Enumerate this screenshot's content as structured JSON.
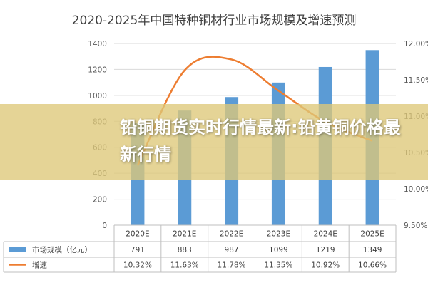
{
  "chart_data": {
    "type": "bar",
    "title": "2020-2025年中国特种铜材行业市场规模及增速预测",
    "categories": [
      "2020E",
      "2021E",
      "2022E",
      "2023E",
      "2024E",
      "2025E"
    ],
    "series": [
      {
        "name": "市场规模（亿元）",
        "type": "bar",
        "axis": "left",
        "values": [
          791,
          883,
          987,
          1099,
          1219,
          1349
        ],
        "labels": [
          "791",
          "883",
          "987",
          "1099",
          "1219",
          "1349"
        ],
        "color": "#5b9bd5"
      },
      {
        "name": "增速",
        "type": "line",
        "axis": "right",
        "values": [
          10.32,
          11.63,
          11.78,
          11.35,
          10.92,
          10.66
        ],
        "labels": [
          "10.32%",
          "11.63%",
          "11.78%",
          "11.35%",
          "10.92%",
          "10.66%"
        ],
        "color": "#ed7d31"
      }
    ],
    "ylim": [
      0,
      1400
    ],
    "y_ticks": [
      "0",
      "200",
      "400",
      "600",
      "800",
      "1000",
      "1200",
      "1400"
    ],
    "y2lim": [
      9.5,
      12.0
    ],
    "y2_ticks": [
      "9.50%",
      "10.00%",
      "10.50%",
      "11.00%",
      "11.50%",
      "12.00%"
    ],
    "grid": true,
    "legend": "data-table"
  },
  "overlay": {
    "banner_text": "铅铜期货实时行情最新:铅黄铜价格最新行情"
  }
}
